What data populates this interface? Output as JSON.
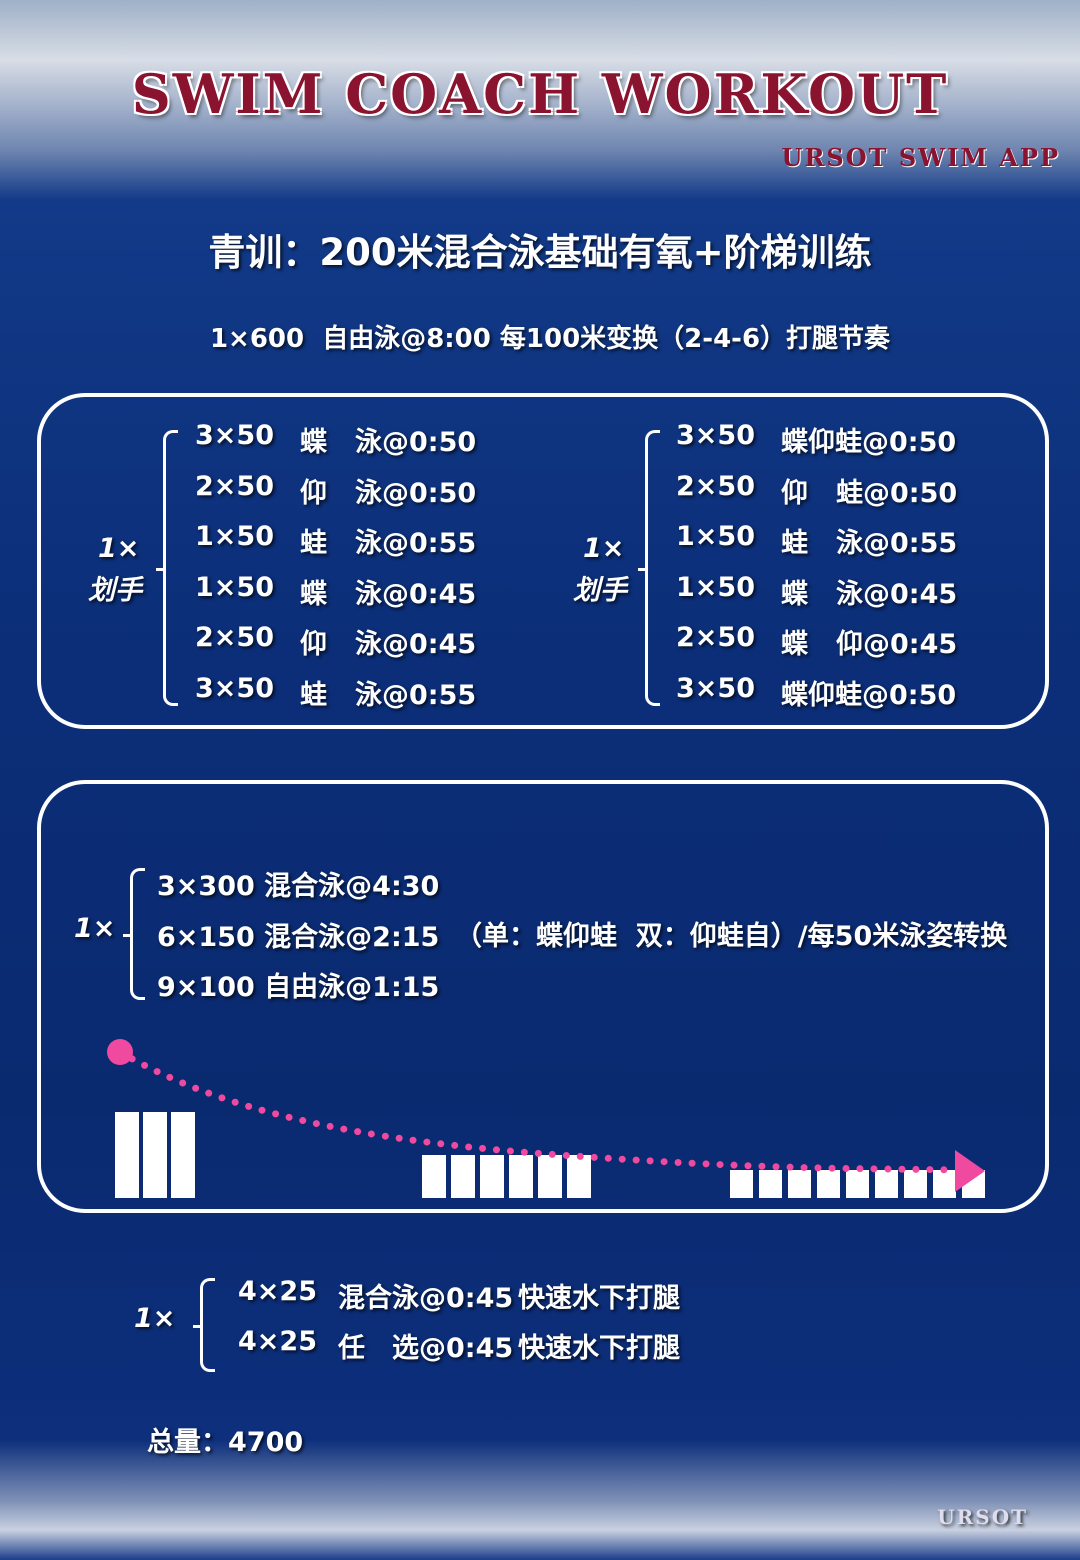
{
  "header": {
    "title": "SWIM COACH WORKOUT",
    "brand": "URSOT SWIM APP"
  },
  "heading": "青训：200米混合泳基础有氧+阶梯训练",
  "warmup": "1×600  自由泳@8:00 每100米变换（2-4-6）打腿节奏",
  "drill_sets": [
    {
      "repeat": "1×",
      "label": "划手",
      "rows": [
        [
          "3×50",
          "蝶",
          "泳@0:50"
        ],
        [
          "2×50",
          "仰",
          "泳@0:50"
        ],
        [
          "1×50",
          "蛙",
          "泳@0:55"
        ],
        [
          "1×50",
          "蝶",
          "泳@0:45"
        ],
        [
          "2×50",
          "仰",
          "泳@0:45"
        ],
        [
          "3×50",
          "蛙",
          "泳@0:55"
        ]
      ]
    },
    {
      "repeat": "1×",
      "label": "划手",
      "rows": [
        [
          "3×50",
          "蝶仰蛙@0:50"
        ],
        [
          "2×50",
          "仰",
          "蛙@0:50"
        ],
        [
          "1×50",
          "蛙",
          "泳@0:55"
        ],
        [
          "1×50",
          "蝶",
          "泳@0:45"
        ],
        [
          "2×50",
          "蝶",
          "仰@0:45"
        ],
        [
          "3×50",
          "蝶仰蛙@0:50"
        ]
      ]
    }
  ],
  "main_set": {
    "repeat": "1×",
    "rows": [
      "3×300 混合泳@4:30",
      "6×150 混合泳@2:15",
      "9×100 自由泳@1:15"
    ],
    "note": "（单：蝶仰蛙  双：仰蛙自）/每50米泳姿转换"
  },
  "kick_set": {
    "repeat": "1×",
    "rows": [
      [
        "4×25",
        "混合泳@0:45",
        "快速水下打腿"
      ],
      [
        "4×25",
        "任　选@0:45",
        "快速水下打腿"
      ]
    ]
  },
  "total": "总量：4700",
  "footer_logo": "URSOT"
}
